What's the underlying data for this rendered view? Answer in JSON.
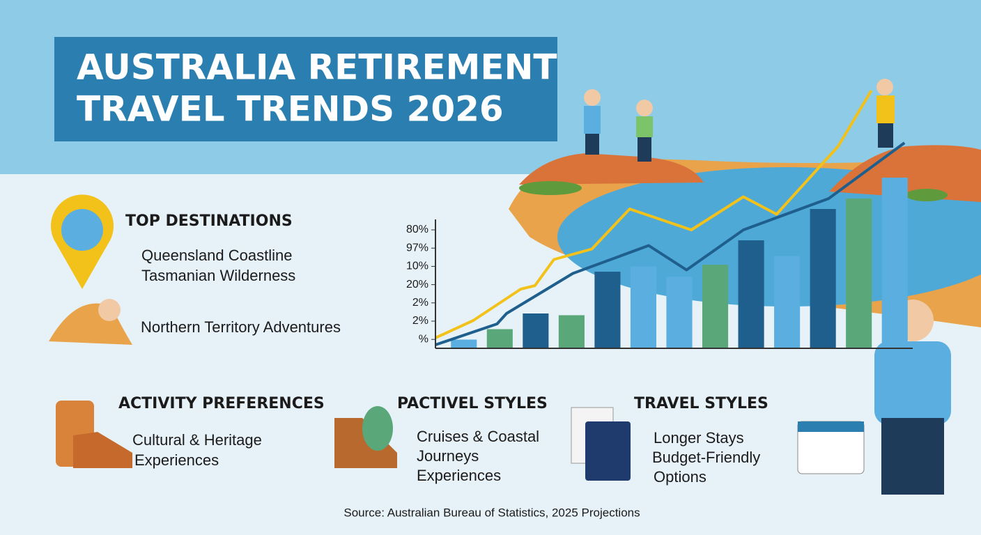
{
  "header": {
    "title_lines": [
      "AUSTRALIA RETIREMENT",
      "TRAVEL TRENDS 2026"
    ]
  },
  "sections": [
    {
      "heading": "TOP DESTINATIONS",
      "lines": [
        "Queensland Coastline",
        "Tasmanian Wilderness",
        "Northern Territory Adventures"
      ]
    },
    {
      "heading": "ACTIVITY PREFERENCES",
      "lines": [
        "Cultural & Heritage",
        "Experiences"
      ]
    },
    {
      "heading": "PACTIVEL STYLES",
      "lines": [
        "Cruises & Coastal",
        "Journeys",
        "Experiences"
      ]
    },
    {
      "heading": "TRAVEL STYLES",
      "lines": [
        "Longer Stays",
        "Budget-Friendly",
        "Options"
      ]
    }
  ],
  "chart_data": {
    "type": "bar",
    "y_labels": [
      "80%",
      "97%",
      "10%",
      "20%",
      "2%",
      "2%",
      "%"
    ],
    "categories": [
      null,
      null,
      null,
      null,
      null,
      null,
      null,
      null,
      null,
      null,
      null,
      null,
      null
    ],
    "values": [
      5,
      11,
      20,
      19,
      44,
      47,
      41,
      48,
      62,
      53,
      80,
      86,
      98
    ],
    "colors": [
      "#5aaee0",
      "#5aa87a",
      "#1f5f8e",
      "#5aa87a",
      "#1f5f8e",
      "#5aaee0",
      "#5aaee0",
      "#5aa87a",
      "#1f5f8e",
      "#5aaee0",
      "#1f5f8e",
      "#5aa87a",
      "#5aaee0"
    ],
    "ylim": [
      0,
      150
    ],
    "xlim": [
      0,
      100
    ],
    "lines": [
      {
        "color": "#f2c21b",
        "x": [
          0,
          8,
          18,
          21,
          25,
          33,
          41,
          54,
          65,
          72,
          85,
          92
        ],
        "values": [
          6,
          16,
          34,
          36,
          51,
          57,
          80,
          68,
          87,
          77,
          116,
          148
        ]
      },
      {
        "color": "#1f5f8e",
        "x": [
          0,
          13,
          15,
          29,
          45,
          53,
          65,
          83,
          99
        ],
        "values": [
          2,
          14,
          20,
          43,
          59,
          45,
          68,
          86,
          118
        ]
      }
    ]
  },
  "footer": {
    "source": "Source: Australian Bureau of Statistics, 2025 Projections"
  }
}
